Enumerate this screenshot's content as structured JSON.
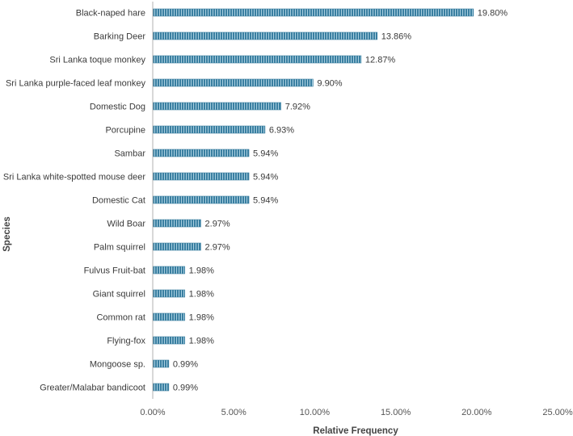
{
  "chart_data": {
    "type": "bar",
    "orientation": "horizontal",
    "title": "",
    "xlabel": "Relative Frequency",
    "ylabel": "Species",
    "xlim": [
      0,
      25
    ],
    "x_ticks": [
      "0.00%",
      "5.00%",
      "10.00%",
      "15.00%",
      "20.00%",
      "25.00%"
    ],
    "grid": false,
    "bar_color": "#3a7fa1",
    "categories": [
      "Black-naped hare",
      "Barking Deer",
      "Sri Lanka toque monkey",
      "Sri Lanka purple-faced leaf monkey",
      "Domestic Dog",
      "Porcupine",
      "Sambar",
      "Sri Lanka white-spotted mouse deer",
      "Domestic Cat",
      "Wild Boar",
      "Palm squirrel",
      "Fulvus Fruit-bat",
      "Giant squirrel",
      "Common rat",
      "Flying-fox",
      "Mongoose sp.",
      "Greater/Malabar bandicoot"
    ],
    "values": [
      19.8,
      13.86,
      12.87,
      9.9,
      7.92,
      6.93,
      5.94,
      5.94,
      5.94,
      2.97,
      2.97,
      1.98,
      1.98,
      1.98,
      1.98,
      0.99,
      0.99
    ],
    "value_labels": [
      "19.80%",
      "13.86%",
      "12.87%",
      "9.90%",
      "7.92%",
      "6.93%",
      "5.94%",
      "5.94%",
      "5.94%",
      "2.97%",
      "2.97%",
      "1.98%",
      "1.98%",
      "1.98%",
      "1.98%",
      "0.99%",
      "0.99%"
    ]
  }
}
